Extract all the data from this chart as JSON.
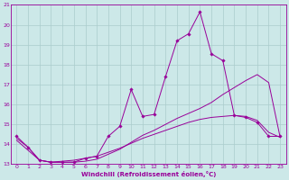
{
  "xlabel": "Windchill (Refroidissement éolien,°C)",
  "bg_color": "#cce8e8",
  "grid_color": "#aacccc",
  "line_color": "#990099",
  "xlim": [
    -0.5,
    23.5
  ],
  "ylim": [
    13,
    21
  ],
  "yticks": [
    13,
    14,
    15,
    16,
    17,
    18,
    19,
    20,
    21
  ],
  "xticks": [
    0,
    1,
    2,
    3,
    4,
    5,
    6,
    7,
    8,
    9,
    10,
    11,
    12,
    13,
    14,
    15,
    16,
    17,
    18,
    19,
    20,
    21,
    22,
    23
  ],
  "line1_x": [
    0,
    1,
    2,
    3,
    4,
    5,
    6,
    7,
    8,
    9,
    10,
    11,
    12,
    13,
    14,
    15,
    16,
    17,
    18,
    19,
    20,
    21,
    22,
    23
  ],
  "line1_y": [
    14.4,
    13.85,
    13.2,
    13.1,
    13.1,
    13.1,
    13.3,
    13.4,
    14.4,
    14.9,
    16.75,
    15.4,
    15.5,
    17.4,
    19.2,
    19.55,
    20.65,
    18.55,
    18.2,
    15.45,
    15.35,
    15.1,
    14.4,
    14.4
  ],
  "line2_x": [
    0,
    1,
    2,
    3,
    4,
    5,
    6,
    7,
    8,
    9,
    10,
    11,
    12,
    13,
    14,
    15,
    16,
    17,
    18,
    19,
    20,
    21,
    22,
    23
  ],
  "line2_y": [
    14.2,
    13.7,
    13.2,
    13.1,
    13.15,
    13.2,
    13.3,
    13.4,
    13.6,
    13.8,
    14.05,
    14.3,
    14.5,
    14.7,
    14.9,
    15.1,
    15.25,
    15.35,
    15.4,
    15.45,
    15.4,
    15.2,
    14.6,
    14.35
  ],
  "line3_x": [
    0,
    1,
    2,
    3,
    4,
    5,
    6,
    7,
    8,
    9,
    10,
    11,
    12,
    13,
    14,
    15,
    16,
    17,
    18,
    19,
    20,
    21,
    22,
    23
  ],
  "line3_y": [
    14.3,
    13.85,
    13.2,
    13.1,
    13.1,
    13.1,
    13.15,
    13.25,
    13.5,
    13.75,
    14.1,
    14.45,
    14.7,
    15.0,
    15.3,
    15.55,
    15.8,
    16.1,
    16.5,
    16.85,
    17.2,
    17.5,
    17.1,
    14.35
  ]
}
